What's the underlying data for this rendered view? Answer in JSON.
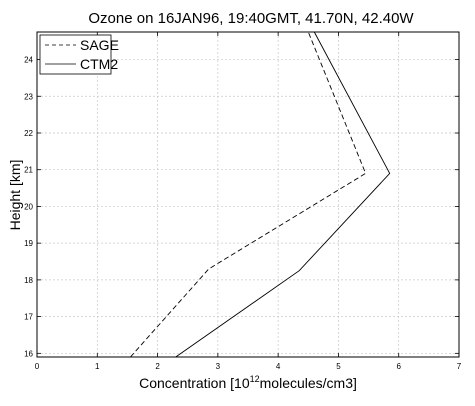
{
  "chart_data": {
    "type": "line",
    "title": "Ozone on 16JAN96, 19:40GMT, 41.70N, 42.40W",
    "xlabel_prefix": "Concentration [10",
    "xlabel_exponent": "12",
    "xlabel_suffix": "molecules/cm3]",
    "ylabel": "Height [km]",
    "xlim": [
      0,
      7
    ],
    "ylim": [
      15.9,
      24.75
    ],
    "xticks": [
      "0",
      "1",
      "2",
      "3",
      "4",
      "5",
      "6",
      "7"
    ],
    "yticks": [
      "16",
      "17",
      "18",
      "19",
      "20",
      "21",
      "22",
      "23",
      "24"
    ],
    "grid": true,
    "legend_position": "top-left",
    "series": [
      {
        "name": "SAGE",
        "style": "dashed",
        "color": "#000000",
        "points": [
          [
            1.55,
            15.9
          ],
          [
            2.85,
            18.3
          ],
          [
            5.45,
            20.9
          ],
          [
            4.5,
            24.75
          ]
        ]
      },
      {
        "name": "CTM2",
        "style": "solid",
        "color": "#000000",
        "points": [
          [
            2.3,
            15.9
          ],
          [
            4.35,
            18.25
          ],
          [
            5.85,
            20.9
          ],
          [
            4.6,
            24.75
          ]
        ]
      }
    ]
  }
}
